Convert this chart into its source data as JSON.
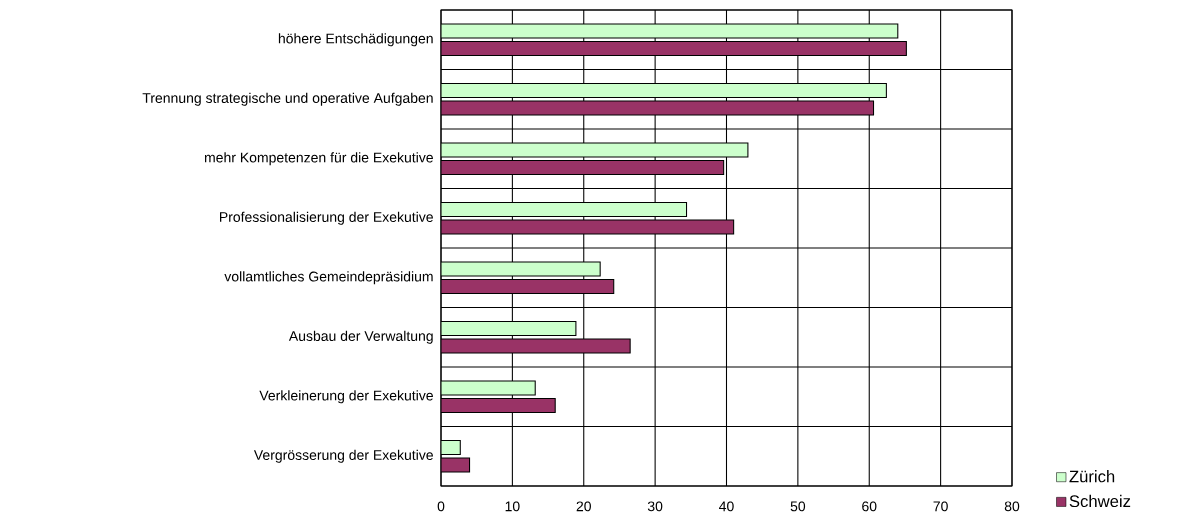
{
  "chart_data": {
    "type": "bar",
    "orientation": "horizontal",
    "categories": [
      "höhere Entschädigungen",
      "Trennung strategische und operative Aufgaben",
      "mehr Kompetenzen für die Exekutive",
      "Professionalisierung der Exekutive",
      "vollamtliches Gemeindepräsidium",
      "Ausbau der Verwaltung",
      "Verkleinerung der Exekutive",
      "Vergrösserung der Exekutive"
    ],
    "series": [
      {
        "name": "Zürich",
        "color": "#ccffcc",
        "values": [
          64,
          62.4,
          43,
          34.4,
          22.3,
          18.9,
          13.2,
          2.7
        ]
      },
      {
        "name": "Schweiz",
        "color": "#993366",
        "values": [
          65.2,
          60.6,
          39.6,
          41,
          24.2,
          26.5,
          16,
          4
        ]
      }
    ],
    "xlim": [
      0,
      80
    ],
    "xticks": [
      0,
      10,
      20,
      30,
      40,
      50,
      60,
      70,
      80
    ],
    "grid": true,
    "legend": "bottom right"
  }
}
